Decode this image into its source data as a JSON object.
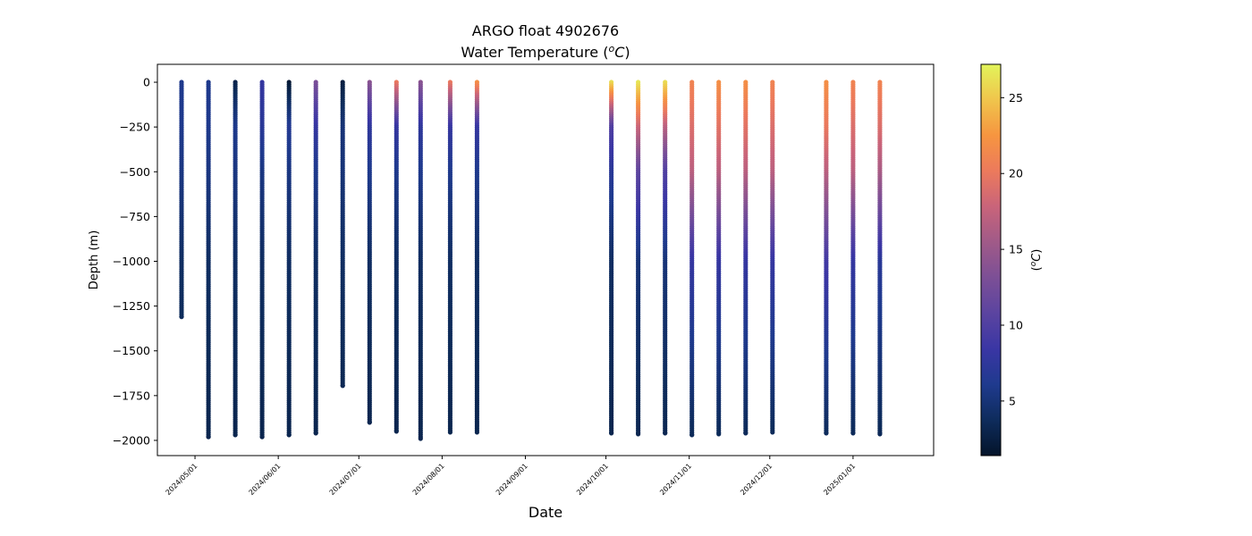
{
  "chart_data": {
    "type": "scatter",
    "title_line1": "ARGO float 4902676",
    "title_line2": "Water Temperature (",
    "title_unit_super": "o",
    "title_unit_main": "C",
    "title_close": ")",
    "xlabel": "Date",
    "ylabel": "Depth (m)",
    "colorbar_label_open": "(",
    "colorbar_label_super": "o",
    "colorbar_label_main": "C",
    "colorbar_label_close": ")",
    "xlim": [
      "2024-04-17",
      "2025-01-31"
    ],
    "ylim": [
      -2085,
      100
    ],
    "x_ticks": [
      "2024-05-01",
      "2024-06-01",
      "2024-07-01",
      "2024-08-01",
      "2024-09-01",
      "2024-10-01",
      "2024-11-01",
      "2024-12-01",
      "2025-01-01"
    ],
    "x_tick_labels": [
      "2024/05/01",
      "2024/06/01",
      "2024/07/01",
      "2024/08/01",
      "2024/09/01",
      "2024/10/01",
      "2024/11/01",
      "2024/12/01",
      "2025/01/01"
    ],
    "y_ticks": [
      0,
      -250,
      -500,
      -750,
      -1000,
      -1250,
      -1500,
      -1750,
      -2000
    ],
    "y_tick_labels": [
      "0",
      "−250",
      "−500",
      "−750",
      "−1000",
      "−1250",
      "−1500",
      "−1750",
      "−2000"
    ],
    "colorbar": {
      "min": 1.4,
      "max": 27.2,
      "ticks": [
        5,
        10,
        15,
        20,
        25
      ],
      "tick_labels": [
        "5",
        "10",
        "15",
        "20",
        "25"
      ],
      "colormap": "thermal",
      "colors": [
        "#04142a",
        "#0e2c5c",
        "#1f3a8e",
        "#3a36a4",
        "#5b44a0",
        "#7c4f96",
        "#a05a88",
        "#c9647a",
        "#ec7a5c",
        "#f69540",
        "#f0c54c",
        "#e2f45a"
      ]
    },
    "profiles": [
      {
        "date": "2024-04-26",
        "max_depth": -1310,
        "surface_temp": 6,
        "t250": 6,
        "t500": 5.5,
        "t1000": 4.0
      },
      {
        "date": "2024-05-06",
        "max_depth": -1980,
        "surface_temp": 6,
        "t250": 6,
        "t500": 5.5,
        "t1000": 4.0
      },
      {
        "date": "2024-05-16",
        "max_depth": -1970,
        "surface_temp": 3,
        "t250": 6,
        "t500": 5.5,
        "t1000": 4.0
      },
      {
        "date": "2024-05-26",
        "max_depth": -1980,
        "surface_temp": 8,
        "t250": 7,
        "t500": 5.5,
        "t1000": 4.0
      },
      {
        "date": "2024-06-05",
        "max_depth": -1970,
        "surface_temp": 2,
        "t250": 6.5,
        "t500": 5.5,
        "t1000": 4.0
      },
      {
        "date": "2024-06-15",
        "max_depth": -1960,
        "surface_temp": 13,
        "t250": 8,
        "t500": 6,
        "t1000": 4.0
      },
      {
        "date": "2024-06-25",
        "max_depth": -1695,
        "surface_temp": 2.5,
        "t250": 5,
        "t500": 5,
        "t1000": 4.0
      },
      {
        "date": "2024-07-05",
        "max_depth": -1900,
        "surface_temp": 14,
        "t250": 7.5,
        "t500": 6,
        "t1000": 4.0
      },
      {
        "date": "2024-07-15",
        "max_depth": -1950,
        "surface_temp": 20,
        "t250": 8,
        "t500": 6,
        "t1000": 4.0
      },
      {
        "date": "2024-07-24",
        "max_depth": -1990,
        "surface_temp": 14,
        "t250": 7.5,
        "t500": 6,
        "t1000": 4.0
      },
      {
        "date": "2024-08-04",
        "max_depth": -1955,
        "surface_temp": 20,
        "t250": 8,
        "t500": 6,
        "t1000": 4.0
      },
      {
        "date": "2024-08-14",
        "max_depth": -1955,
        "surface_temp": 22,
        "t250": 8,
        "t500": 6,
        "t1000": 4.0
      },
      {
        "date": "2024-10-03",
        "max_depth": -1960,
        "surface_temp": 26,
        "t250": 10,
        "t500": 7,
        "t1000": 4.0
      },
      {
        "date": "2024-10-13",
        "max_depth": -1965,
        "surface_temp": 26.5,
        "t250": 18,
        "t500": 11,
        "t1000": 5.0
      },
      {
        "date": "2024-10-23",
        "max_depth": -1960,
        "surface_temp": 26,
        "t250": 17,
        "t500": 10,
        "t1000": 5.0
      },
      {
        "date": "2024-11-02",
        "max_depth": -1970,
        "surface_temp": 21,
        "t250": 19,
        "t500": 17,
        "t1000": 8.0
      },
      {
        "date": "2024-11-12",
        "max_depth": -1965,
        "surface_temp": 22,
        "t250": 19.5,
        "t500": 17,
        "t1000": 8.0
      },
      {
        "date": "2024-11-22",
        "max_depth": -1960,
        "surface_temp": 22,
        "t250": 19.5,
        "t500": 17,
        "t1000": 8.0
      },
      {
        "date": "2024-12-02",
        "max_depth": -1955,
        "surface_temp": 21,
        "t250": 19,
        "t500": 17,
        "t1000": 8.0
      },
      {
        "date": "2024-12-22",
        "max_depth": -1960,
        "surface_temp": 22,
        "t250": 20,
        "t500": 17,
        "t1000": 9.0
      },
      {
        "date": "2025-01-01",
        "max_depth": -1960,
        "surface_temp": 21,
        "t250": 19,
        "t500": 17,
        "t1000": 8.0
      },
      {
        "date": "2025-01-11",
        "max_depth": -1965,
        "surface_temp": 21,
        "t250": 19,
        "t500": 16,
        "t1000": 7.0
      }
    ],
    "deep_temp": 3.0
  }
}
